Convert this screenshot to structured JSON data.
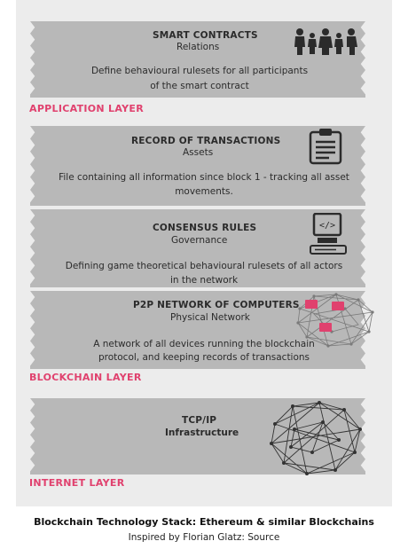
{
  "blocks": [
    {
      "title": "SMART CONTRACTS",
      "subtitle": "Relations",
      "desc1": "Define behavioural rulesets  for all participants",
      "desc2": "of the smart contract"
    },
    {
      "title": "RECORD OF TRANSACTIONS",
      "subtitle": "Assets",
      "desc1": "File containing all information since block 1 - tracking all asset",
      "desc2": "movements."
    },
    {
      "title": "CONSENSUS RULES",
      "subtitle": "Governance",
      "desc1": "Defining game theoretical behavioural rulesets of all actors",
      "desc2": "in the network"
    },
    {
      "title": "P2P NETWORK OF COMPUTERS",
      "subtitle": "Physical Network",
      "desc1": "A network of all devices running the blockchain",
      "desc2": "protocol, and keeping records of transactions"
    },
    {
      "title": "TCP/IP",
      "subtitle": "Infrastructure",
      "desc1": "",
      "desc2": ""
    }
  ],
  "layers": {
    "application": "APPLICATION LAYER",
    "blockchain": "BLOCKCHAIN LAYER",
    "internet": "INTERNET LAYER"
  },
  "icons": [
    "people-group-icon",
    "clipboard-icon",
    "code-computer-icon",
    "network-nodes-icon",
    "mesh-globe-icon"
  ],
  "colors": {
    "layer_label": "#e0416e",
    "band": "#b8b8b8",
    "panel": "#ececec",
    "accent": "#e0416e"
  },
  "caption": {
    "title": "Blockchain Technology Stack: Ethereum & similar Blockchains",
    "subtitle": "Inspired by Florian Glatz: Source"
  }
}
